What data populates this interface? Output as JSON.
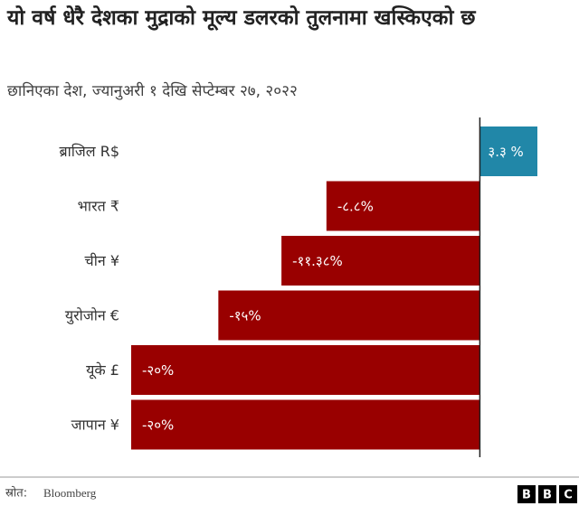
{
  "chart_data": {
    "type": "bar",
    "orientation": "horizontal",
    "title": "यो वर्ष धेरै देशका मुद्राको मूल्य डलरको तुलनामा खस्किएको छ",
    "subtitle": "छानिएका देश, ज्यानुअरी १ देखि सेप्टेम्बर २७, २०२२",
    "categories": [
      "ब्राजिल R$",
      "भारत ₹",
      "चीन ¥",
      "युरोजोन €",
      "यूके £",
      "जापान ¥"
    ],
    "values": [
      3.3,
      -8.8,
      -11.38,
      -15,
      -20,
      -20
    ],
    "value_labels": [
      "३.३ %",
      "-८.८%",
      "-११.३८%",
      "-१५%",
      "-२०%",
      "-२०%"
    ],
    "colors": [
      "#2187a8",
      "#990000",
      "#990000",
      "#990000",
      "#990000",
      "#990000"
    ],
    "source_label": "स्रोत:",
    "source": "Bloomberg",
    "logo": [
      "B",
      "B",
      "C"
    ]
  }
}
